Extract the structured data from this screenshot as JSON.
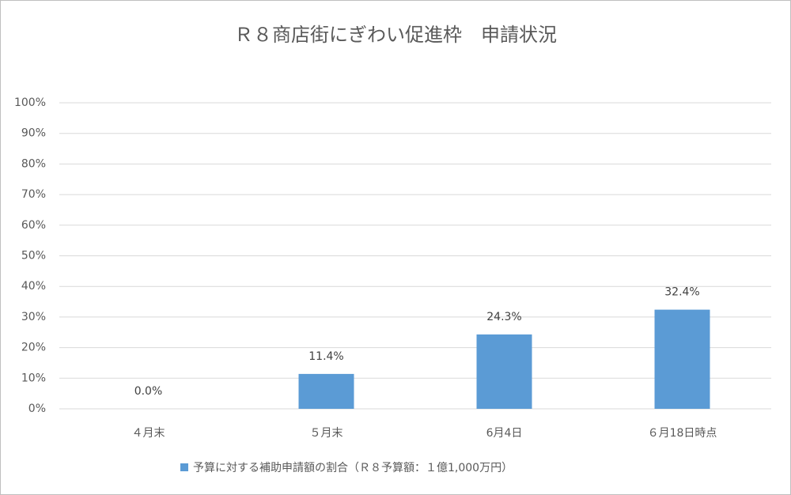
{
  "chart_data": {
    "type": "bar",
    "title": "Ｒ８商店街にぎわい促進枠　申請状況",
    "categories": [
      "４月末",
      "５月末",
      "6月4日",
      "６月18日時点"
    ],
    "series": [
      {
        "name": "予算に対する補助申請額の割合（Ｒ８予算額：１億1,000万円）",
        "color": "#5b9bd5",
        "values": [
          0,
          11.4,
          24.3,
          32.4
        ],
        "value_labels": [
          "0.0%",
          "11.4%",
          "24.3%",
          "32.4%"
        ]
      }
    ],
    "ylim": [
      0,
      100
    ],
    "yticks": [
      {
        "value": 0,
        "label": "0%"
      },
      {
        "value": 10,
        "label": "10%"
      },
      {
        "value": 20,
        "label": "20%"
      },
      {
        "value": 30,
        "label": "30%"
      },
      {
        "value": 40,
        "label": "40%"
      },
      {
        "value": 50,
        "label": "50%"
      },
      {
        "value": 60,
        "label": "60%"
      },
      {
        "value": 70,
        "label": "70%"
      },
      {
        "value": 80,
        "label": "80%"
      },
      {
        "value": 90,
        "label": "90%"
      },
      {
        "value": 100,
        "label": "100%"
      }
    ],
    "grid": true,
    "legend": "bottom"
  }
}
